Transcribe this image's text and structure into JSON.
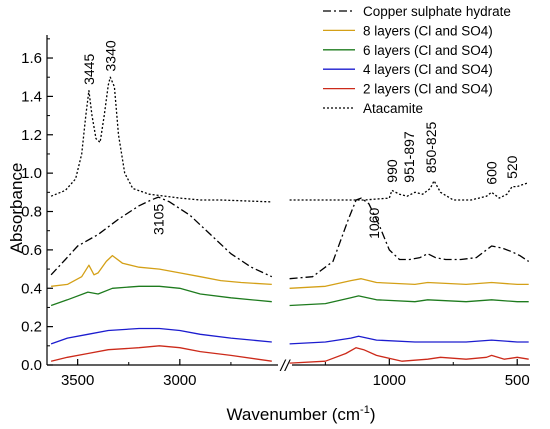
{
  "chart_data": {
    "type": "line",
    "xlabel": "Wavenumber (cm",
    "xlabel_sup": "-1",
    "xlabel_end": ")",
    "ylabel": "Absorbance",
    "axis_break": "//",
    "x_axis_reversed": true,
    "panels": [
      {
        "xlim": [
          3650,
          2500
        ],
        "xticks": [
          "3500",
          "3000"
        ]
      },
      {
        "xlim": [
          1400,
          450
        ],
        "xticks": [
          "1000",
          "500"
        ]
      }
    ],
    "ylim": [
      0,
      1.72
    ],
    "yticks": [
      "0.0",
      "0.2",
      "0.4",
      "0.6",
      "0.8",
      "1.0",
      "1.2",
      "1.4",
      "1.6"
    ],
    "grid": false,
    "legend_position": "top-right",
    "series": [
      {
        "name": "Copper sulphate hydrate",
        "color": "#000000",
        "style": "dashdot",
        "segments": [
          [
            [
              3630,
              0.47
            ],
            [
              3560,
              0.55
            ],
            [
              3500,
              0.62
            ],
            [
              3400,
              0.68
            ],
            [
              3300,
              0.76
            ],
            [
              3200,
              0.83
            ],
            [
              3140,
              0.86
            ],
            [
              3105,
              0.875
            ],
            [
              3050,
              0.85
            ],
            [
              2950,
              0.78
            ],
            [
              2850,
              0.68
            ],
            [
              2750,
              0.58
            ],
            [
              2650,
              0.51
            ],
            [
              2550,
              0.46
            ]
          ],
          [
            [
              1390,
              0.45
            ],
            [
              1300,
              0.46
            ],
            [
              1220,
              0.54
            ],
            [
              1160,
              0.76
            ],
            [
              1130,
              0.86
            ],
            [
              1110,
              0.87
            ],
            [
              1080,
              0.84
            ],
            [
              1040,
              0.73
            ],
            [
              1000,
              0.6
            ],
            [
              960,
              0.55
            ],
            [
              920,
              0.55
            ],
            [
              880,
              0.56
            ],
            [
              850,
              0.58
            ],
            [
              820,
              0.56
            ],
            [
              780,
              0.55
            ],
            [
              720,
              0.55
            ],
            [
              660,
              0.56
            ],
            [
              620,
              0.6
            ],
            [
              600,
              0.62
            ],
            [
              560,
              0.61
            ],
            [
              520,
              0.59
            ],
            [
              490,
              0.57
            ],
            [
              455,
              0.54
            ]
          ]
        ]
      },
      {
        "name": "8 layers (Cl and SO4)",
        "color": "#d4a017",
        "style": "solid",
        "segments": [
          [
            [
              3630,
              0.41
            ],
            [
              3550,
              0.42
            ],
            [
              3480,
              0.46
            ],
            [
              3445,
              0.52
            ],
            [
              3420,
              0.47
            ],
            [
              3400,
              0.48
            ],
            [
              3360,
              0.54
            ],
            [
              3330,
              0.57
            ],
            [
              3280,
              0.53
            ],
            [
              3200,
              0.51
            ],
            [
              3100,
              0.5
            ],
            [
              3000,
              0.48
            ],
            [
              2900,
              0.46
            ],
            [
              2800,
              0.44
            ],
            [
              2700,
              0.43
            ],
            [
              2550,
              0.42
            ]
          ],
          [
            [
              1390,
              0.4
            ],
            [
              1250,
              0.41
            ],
            [
              1150,
              0.44
            ],
            [
              1110,
              0.45
            ],
            [
              1050,
              0.43
            ],
            [
              900,
              0.42
            ],
            [
              850,
              0.43
            ],
            [
              700,
              0.42
            ],
            [
              600,
              0.43
            ],
            [
              500,
              0.42
            ],
            [
              455,
              0.42
            ]
          ]
        ]
      },
      {
        "name": "6 layers (Cl and SO4)",
        "color": "#1e7b1e",
        "style": "solid",
        "segments": [
          [
            [
              3630,
              0.31
            ],
            [
              3550,
              0.34
            ],
            [
              3450,
              0.38
            ],
            [
              3400,
              0.37
            ],
            [
              3330,
              0.4
            ],
            [
              3200,
              0.41
            ],
            [
              3100,
              0.41
            ],
            [
              3000,
              0.4
            ],
            [
              2900,
              0.37
            ],
            [
              2750,
              0.35
            ],
            [
              2550,
              0.33
            ]
          ],
          [
            [
              1390,
              0.31
            ],
            [
              1250,
              0.32
            ],
            [
              1150,
              0.35
            ],
            [
              1120,
              0.36
            ],
            [
              1050,
              0.34
            ],
            [
              900,
              0.33
            ],
            [
              850,
              0.34
            ],
            [
              700,
              0.33
            ],
            [
              600,
              0.34
            ],
            [
              500,
              0.33
            ],
            [
              455,
              0.33
            ]
          ]
        ]
      },
      {
        "name": "4 layers (Cl and SO4)",
        "color": "#1c1ccf",
        "style": "solid",
        "segments": [
          [
            [
              3630,
              0.11
            ],
            [
              3550,
              0.14
            ],
            [
              3450,
              0.16
            ],
            [
              3350,
              0.18
            ],
            [
              3200,
              0.19
            ],
            [
              3100,
              0.19
            ],
            [
              3000,
              0.18
            ],
            [
              2900,
              0.16
            ],
            [
              2750,
              0.14
            ],
            [
              2550,
              0.12
            ]
          ],
          [
            [
              1390,
              0.11
            ],
            [
              1250,
              0.12
            ],
            [
              1150,
              0.14
            ],
            [
              1120,
              0.15
            ],
            [
              1050,
              0.13
            ],
            [
              900,
              0.12
            ],
            [
              700,
              0.12
            ],
            [
              600,
              0.13
            ],
            [
              500,
              0.12
            ],
            [
              455,
              0.12
            ]
          ]
        ]
      },
      {
        "name": "2 layers (Cl and SO4)",
        "color": "#cc2a1a",
        "style": "solid",
        "segments": [
          [
            [
              3630,
              0.02
            ],
            [
              3550,
              0.04
            ],
            [
              3450,
              0.06
            ],
            [
              3350,
              0.08
            ],
            [
              3200,
              0.09
            ],
            [
              3100,
              0.1
            ],
            [
              3000,
              0.09
            ],
            [
              2900,
              0.07
            ],
            [
              2750,
              0.05
            ],
            [
              2550,
              0.02
            ]
          ],
          [
            [
              1390,
              0.01
            ],
            [
              1250,
              0.02
            ],
            [
              1170,
              0.06
            ],
            [
              1130,
              0.09
            ],
            [
              1100,
              0.08
            ],
            [
              1050,
              0.05
            ],
            [
              950,
              0.02
            ],
            [
              850,
              0.03
            ],
            [
              800,
              0.04
            ],
            [
              700,
              0.03
            ],
            [
              620,
              0.04
            ],
            [
              600,
              0.05
            ],
            [
              550,
              0.03
            ],
            [
              500,
              0.04
            ],
            [
              455,
              0.03
            ]
          ]
        ]
      },
      {
        "name": "Atacamite",
        "color": "#000000",
        "style": "dotted",
        "segments": [
          [
            [
              3630,
              0.88
            ],
            [
              3560,
              0.91
            ],
            [
              3510,
              0.97
            ],
            [
              3480,
              1.1
            ],
            [
              3460,
              1.3
            ],
            [
              3445,
              1.43
            ],
            [
              3430,
              1.3
            ],
            [
              3410,
              1.18
            ],
            [
              3390,
              1.16
            ],
            [
              3370,
              1.3
            ],
            [
              3350,
              1.46
            ],
            [
              3340,
              1.5
            ],
            [
              3320,
              1.45
            ],
            [
              3300,
              1.2
            ],
            [
              3270,
              1.0
            ],
            [
              3230,
              0.92
            ],
            [
              3150,
              0.89
            ],
            [
              3000,
              0.87
            ],
            [
              2900,
              0.86
            ],
            [
              2800,
              0.86
            ],
            [
              2550,
              0.85
            ]
          ],
          [
            [
              1390,
              0.86
            ],
            [
              1300,
              0.86
            ],
            [
              1200,
              0.86
            ],
            [
              1100,
              0.86
            ],
            [
              1000,
              0.87
            ],
            [
              990,
              0.91
            ],
            [
              960,
              0.89
            ],
            [
              930,
              0.88
            ],
            [
              900,
              0.9
            ],
            [
              870,
              0.89
            ],
            [
              840,
              0.92
            ],
            [
              825,
              0.96
            ],
            [
              800,
              0.9
            ],
            [
              750,
              0.86
            ],
            [
              680,
              0.86
            ],
            [
              620,
              0.88
            ],
            [
              600,
              0.9
            ],
            [
              570,
              0.87
            ],
            [
              540,
              0.89
            ],
            [
              520,
              0.93
            ],
            [
              500,
              0.93
            ],
            [
              480,
              0.94
            ],
            [
              455,
              0.95
            ]
          ]
        ]
      }
    ],
    "annotations": [
      {
        "text": "3445",
        "panel": 0,
        "x": 3445,
        "y": 1.46,
        "rotate": -90
      },
      {
        "text": "3340",
        "panel": 0,
        "x": 3340,
        "y": 1.53,
        "rotate": -90
      },
      {
        "text": "3105",
        "panel": 0,
        "x": 3105,
        "y": 0.84,
        "rotate": -90,
        "anchor": "end"
      },
      {
        "text": "990",
        "panel": 1,
        "x": 990,
        "y": 0.95,
        "rotate": -90
      },
      {
        "text": "951-897",
        "panel": 1,
        "x": 924,
        "y": 0.95,
        "rotate": -90
      },
      {
        "text": "850-825",
        "panel": 1,
        "x": 837,
        "y": 1.0,
        "rotate": -90
      },
      {
        "text": "1060",
        "panel": 1,
        "x": 1060,
        "y": 0.82,
        "rotate": -90,
        "anchor": "end"
      },
      {
        "text": "600",
        "panel": 1,
        "x": 600,
        "y": 0.94,
        "rotate": -90
      },
      {
        "text": "520",
        "panel": 1,
        "x": 520,
        "y": 0.97,
        "rotate": -90
      }
    ]
  }
}
